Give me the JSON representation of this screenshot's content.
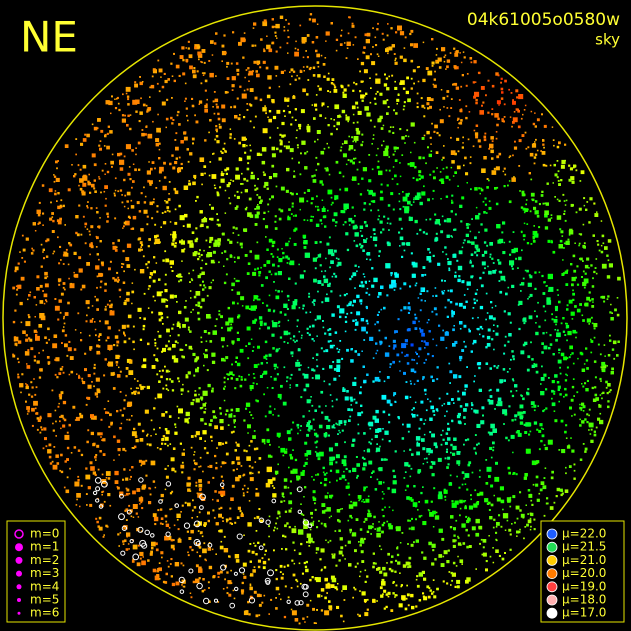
{
  "header": {
    "direction": "NE",
    "image_id": "04k61005o0580w",
    "subtitle": "sky"
  },
  "magnitude_legend": [
    "m=0",
    "m=1",
    "m=2",
    "m=3",
    "m=4",
    "m=5",
    "m=6"
  ],
  "brightness_legend": [
    "μ=22.0",
    "μ=21.5",
    "μ=21.0",
    "μ=20.0",
    "μ=19.0",
    "μ=18.0",
    "μ=17.0"
  ]
}
